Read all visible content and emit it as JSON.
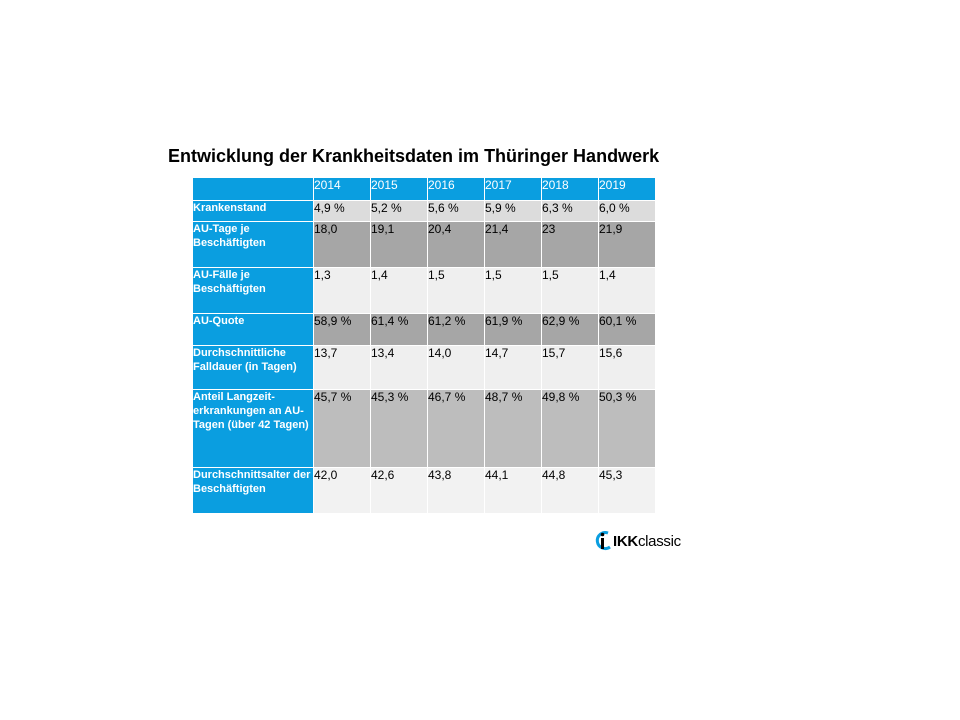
{
  "title": "Entwicklung der Krankheitsdaten im Thüringer Handwerk",
  "years": [
    "2014",
    "2015",
    "2016",
    "2017",
    "2018",
    "2019"
  ],
  "rows": [
    {
      "label": "Krankenstand",
      "values": [
        "4,9 %",
        "5,2 %",
        "5,6 %",
        "5,9 %",
        "6,3 %",
        "6,0 %"
      ]
    },
    {
      "label": "AU-Tage je Beschäftigten",
      "values": [
        "18,0",
        "19,1",
        "20,4",
        "21,4",
        "23",
        "21,9"
      ]
    },
    {
      "label": "AU-Fälle je Beschäftigten",
      "values": [
        "1,3",
        "1,4",
        "1,5",
        "1,5",
        "1,5",
        "1,4"
      ]
    },
    {
      "label": "AU-Quote",
      "values": [
        "58,9 %",
        "61,4 %",
        "61,2 %",
        "61,9 %",
        "62,9 %",
        "60,1 %"
      ]
    },
    {
      "label": "Durchschnittliche Falldauer (in Tagen)",
      "values": [
        "13,7",
        "13,4",
        "14,0",
        "14,7",
        "15,7",
        "15,6"
      ]
    },
    {
      "label": "Anteil Langzeit-erkrankungen an AU-Tagen (über 42 Tagen)",
      "values": [
        "45,7 %",
        "45,3 %",
        "46,7 %",
        "48,7 %",
        "49,8 %",
        "50,3 %"
      ]
    },
    {
      "label": "Durchschnittsalter der Beschäftigten",
      "values": [
        "42,0",
        "42,6",
        "43,8",
        "44,1",
        "44,8",
        "45,3"
      ]
    }
  ],
  "colors": {
    "header": "#0a9ee0",
    "logo_blue": "#0a9ee0"
  },
  "logo": {
    "brand": "IKK",
    "suffix": "classic"
  }
}
